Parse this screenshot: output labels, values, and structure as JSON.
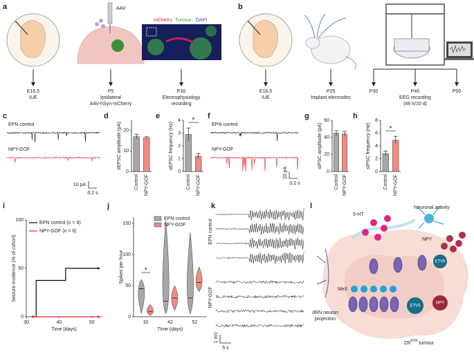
{
  "panel_labels": [
    "a",
    "b",
    "c",
    "d",
    "e",
    "f",
    "g",
    "h",
    "i",
    "j",
    "k",
    "l"
  ],
  "panel_a": {
    "vector": "AAV",
    "stains": [
      "mCherry",
      "Tumour",
      "DAPI"
    ],
    "timeline": [
      [
        "E16.5",
        "IUE"
      ],
      [
        "P5",
        "Ipsilateral",
        "AAV-hSyn-mCherry"
      ],
      [
        "P30",
        "Electrophysiology",
        "recording"
      ]
    ]
  },
  "panel_b": {
    "timeline": [
      [
        "E16.5",
        "IUE"
      ],
      [
        "P25",
        "Implant electrodes"
      ],
      [
        "P30"
      ],
      [
        "P40"
      ],
      [
        "P50"
      ]
    ],
    "recording": [
      "EEG recording",
      "(48 h/10 d)"
    ]
  },
  "panel_c": {
    "groups": [
      "EPN control",
      "NPY-GOF"
    ],
    "scale_y": "10 pA",
    "scale_x": "0.2 s"
  },
  "panel_f": {
    "groups": [
      "EPN control",
      "NPY-GOF"
    ],
    "scale_y": "20 pA",
    "scale_x": "0.2 s"
  },
  "panel_k": {
    "groups": [
      "EPN control",
      "NPY-GOF"
    ],
    "scale_y": "1 mV",
    "scale_x": "5 s"
  },
  "panel_l": {
    "activity": "Neuronal activity",
    "serotonin": "5-HT",
    "npy_top": "NPY",
    "etv5_top": "ETV5",
    "me3": "Me3",
    "etv5_bottom": "ETV5",
    "npy_bottom": "NPY",
    "projection": [
      "dRN neuron",
      "projection"
    ],
    "tumour": {
      "text": "ZR",
      "sup": "FUS",
      "rest": " tumour"
    }
  },
  "chart_data": [
    {
      "type": "bar",
      "ylabel": "sEPSC amplitude (pA)",
      "categories": [
        "Control",
        "NPY-GOF"
      ],
      "values": [
        17,
        16.5
      ],
      "errors": [
        1.2,
        0.5
      ],
      "colors": [
        "#a8a8a8",
        "#f28b82"
      ],
      "ylim": [
        0,
        25
      ],
      "yticks": [
        0,
        10,
        20
      ]
    },
    {
      "type": "bar",
      "ylabel": "sEPSC frequency (Hz)",
      "categories": [
        "Control",
        "NPY-GOF"
      ],
      "values": [
        2.9,
        1.2
      ],
      "errors": [
        0.5,
        0.2
      ],
      "colors": [
        "#a8a8a8",
        "#f28b82"
      ],
      "ylim": [
        0,
        4
      ],
      "yticks": [
        0,
        1,
        2,
        3,
        4
      ],
      "annotation": "*"
    },
    {
      "type": "bar",
      "ylabel": "sIPSC amplitude (pA)",
      "categories": [
        "Control",
        "NPY-GOF"
      ],
      "values": [
        45,
        44
      ],
      "errors": [
        3,
        3
      ],
      "colors": [
        "#a8a8a8",
        "#f28b82"
      ],
      "ylim": [
        0,
        60
      ],
      "yticks": [
        0,
        20,
        40,
        60
      ]
    },
    {
      "type": "bar",
      "ylabel": "sIPSC frequency (Hz)",
      "categories": [
        "Control",
        "NPY-GOF"
      ],
      "values": [
        2.8,
        4.9
      ],
      "errors": [
        0.4,
        0.6
      ],
      "colors": [
        "#a8a8a8",
        "#f28b82"
      ],
      "ylim": [
        0,
        8
      ],
      "yticks": [
        0,
        2,
        4,
        6,
        8
      ],
      "annotation": "*"
    },
    {
      "type": "line",
      "ylabel": "Seizure incidence (% of cohort)",
      "xlabel": "Time (days)",
      "step": true,
      "xlim": [
        30,
        53
      ],
      "xticks": [
        30,
        40,
        50
      ],
      "ylim": [
        0,
        100
      ],
      "yticks": [
        0,
        50,
        100
      ],
      "series": [
        {
          "name": "EPN control (n = 8)",
          "color": "#000000",
          "x": [
            32,
            33,
            42,
            52
          ],
          "values": [
            0,
            37.5,
            50,
            50
          ]
        },
        {
          "name": "NPY-GOF (n = 6)",
          "color": "#e8202a",
          "x": [
            32,
            52
          ],
          "values": [
            0,
            0
          ]
        }
      ]
    },
    {
      "type": "violin",
      "ylabel": "Spikes per hour",
      "xlabel": "Time (days)",
      "categories": [
        32,
        42,
        52
      ],
      "ylim": [
        0,
        160
      ],
      "yticks": [
        0,
        50,
        100,
        150
      ],
      "annotation": "*",
      "series": [
        {
          "name": "EPN control",
          "color": "#a8a8a8",
          "values": [
            45,
            25,
            30
          ],
          "min": [
            5,
            5,
            5
          ],
          "max": [
            60,
            155,
            135
          ]
        },
        {
          "name": "NPY-GOF",
          "color": "#f28b82",
          "values": [
            8,
            30,
            55
          ],
          "min": [
            2,
            10,
            40
          ],
          "max": [
            20,
            50,
            80
          ]
        }
      ]
    }
  ]
}
